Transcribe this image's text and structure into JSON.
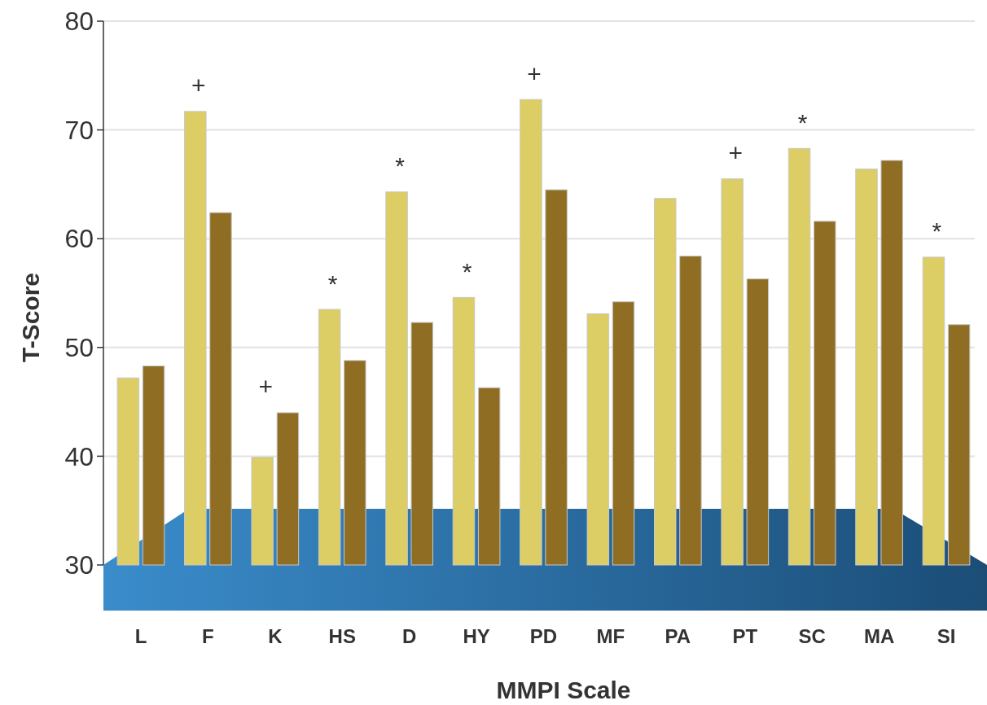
{
  "chart_data": {
    "type": "bar",
    "xlabel": "MMPI Scale",
    "ylabel": "T-Score",
    "categories": [
      "L",
      "F",
      "K",
      "HS",
      "D",
      "HY",
      "PD",
      "MF",
      "PA",
      "PT",
      "SC",
      "MA",
      "SI"
    ],
    "series": [
      {
        "color": "#dccd64",
        "values": [
          47.2,
          71.7,
          39.9,
          53.5,
          64.3,
          54.6,
          72.8,
          53.1,
          63.7,
          65.5,
          68.3,
          66.4,
          58.3
        ]
      },
      {
        "color": "#8f6e24",
        "values": [
          48.3,
          62.4,
          44.0,
          48.8,
          52.3,
          46.3,
          64.5,
          54.2,
          58.4,
          56.3,
          61.6,
          67.2,
          52.1
        ]
      }
    ],
    "ylim": [
      30,
      80
    ],
    "yticks": [
      30,
      40,
      50,
      60,
      70,
      80
    ],
    "grid": "y",
    "annotations": [
      {
        "text": "+",
        "x": "F",
        "y": 71.7
      },
      {
        "text": "+",
        "x": "K",
        "y": 44.0
      },
      {
        "text": "*",
        "x": "HS",
        "y": 53.5
      },
      {
        "text": "*",
        "x": "D",
        "y": 64.3
      },
      {
        "text": "*",
        "x": "HY",
        "y": 54.6
      },
      {
        "text": "+",
        "x": "PD",
        "y": 72.8
      },
      {
        "text": "+",
        "x": "PT",
        "y": 65.5
      },
      {
        "text": "*",
        "x": "SC",
        "y": 68.3
      },
      {
        "text": "*",
        "x": "SI",
        "y": 58.3
      }
    ]
  }
}
